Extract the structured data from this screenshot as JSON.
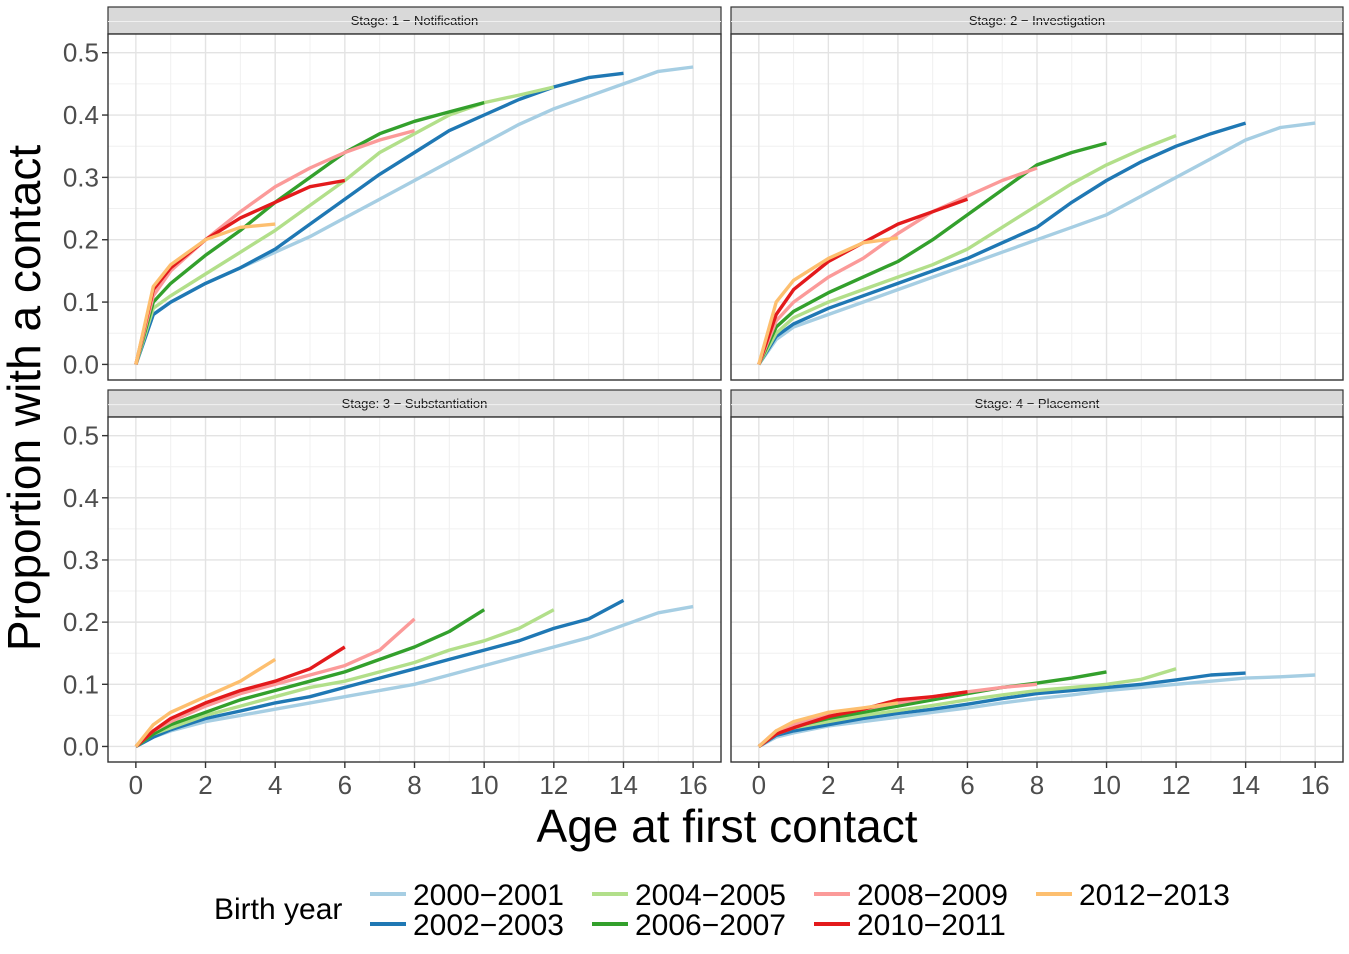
{
  "chart_data": {
    "type": "line",
    "facets": [
      "Stage: 1 − Notification",
      "Stage: 2 − Investigation",
      "Stage: 3 − Substantiation",
      "Stage: 4 − Placement"
    ],
    "xlabel": "Age at first contact",
    "ylabel": "Proportion with a contact",
    "xlim": [
      -0.8,
      16.8
    ],
    "ylim": [
      -0.025,
      0.53
    ],
    "x_ticks": [
      "0",
      "2",
      "4",
      "6",
      "8",
      "10",
      "12",
      "14",
      "16"
    ],
    "y_ticks": [
      "0.0",
      "0.1",
      "0.2",
      "0.3",
      "0.4",
      "0.5"
    ],
    "legend": {
      "title": "Birth year",
      "position": "bottom"
    },
    "grid": true,
    "series_meta": [
      {
        "name": "2000−2001",
        "color": "#a6cee3"
      },
      {
        "name": "2002−2003",
        "color": "#1f78b4"
      },
      {
        "name": "2004−2005",
        "color": "#b2df8a"
      },
      {
        "name": "2006−2007",
        "color": "#33a02c"
      },
      {
        "name": "2008−2009",
        "color": "#fb9a99"
      },
      {
        "name": "2010−2011",
        "color": "#e31a1c"
      },
      {
        "name": "2012−2013",
        "color": "#fdbf6f"
      }
    ],
    "panels": [
      {
        "title": "Stage: 1 − Notification",
        "series": [
          {
            "name": "2000−2001",
            "x": [
              0,
              0.5,
              1,
              2,
              3,
              4,
              5,
              6,
              7,
              8,
              9,
              10,
              11,
              12,
              13,
              14,
              15,
              16
            ],
            "y": [
              0.0,
              0.08,
              0.1,
              0.13,
              0.155,
              0.18,
              0.205,
              0.235,
              0.265,
              0.295,
              0.325,
              0.355,
              0.385,
              0.41,
              0.43,
              0.45,
              0.47,
              0.477
            ]
          },
          {
            "name": "2002−2003",
            "x": [
              0,
              0.5,
              1,
              2,
              3,
              4,
              5,
              6,
              7,
              8,
              9,
              10,
              11,
              12,
              13,
              14
            ],
            "y": [
              0.0,
              0.08,
              0.1,
              0.13,
              0.155,
              0.185,
              0.225,
              0.265,
              0.305,
              0.34,
              0.375,
              0.4,
              0.425,
              0.445,
              0.46,
              0.467
            ]
          },
          {
            "name": "2004−2005",
            "x": [
              0,
              0.5,
              1,
              2,
              3,
              4,
              5,
              6,
              7,
              8,
              9,
              10,
              11,
              12
            ],
            "y": [
              0.0,
              0.09,
              0.11,
              0.145,
              0.18,
              0.215,
              0.255,
              0.295,
              0.34,
              0.37,
              0.4,
              0.42,
              0.432,
              0.445
            ]
          },
          {
            "name": "2006−2007",
            "x": [
              0,
              0.5,
              1,
              2,
              3,
              4,
              5,
              6,
              7,
              8,
              9,
              10
            ],
            "y": [
              0.0,
              0.1,
              0.13,
              0.175,
              0.215,
              0.26,
              0.3,
              0.34,
              0.37,
              0.39,
              0.405,
              0.42
            ]
          },
          {
            "name": "2008−2009",
            "x": [
              0,
              0.5,
              1,
              2,
              3,
              4,
              5,
              6,
              7,
              8
            ],
            "y": [
              0.0,
              0.11,
              0.15,
              0.2,
              0.245,
              0.285,
              0.315,
              0.34,
              0.36,
              0.375
            ]
          },
          {
            "name": "2010−2011",
            "x": [
              0,
              0.5,
              1,
              2,
              3,
              4,
              5,
              6
            ],
            "y": [
              0.0,
              0.12,
              0.155,
              0.2,
              0.235,
              0.26,
              0.285,
              0.295
            ]
          },
          {
            "name": "2012−2013",
            "x": [
              0,
              0.5,
              1,
              2,
              3,
              4
            ],
            "y": [
              0.0,
              0.125,
              0.16,
              0.2,
              0.22,
              0.225
            ]
          }
        ]
      },
      {
        "title": "Stage: 2 − Investigation",
        "series": [
          {
            "name": "2000−2001",
            "x": [
              0,
              0.5,
              1,
              2,
              3,
              4,
              5,
              6,
              7,
              8,
              9,
              10,
              11,
              12,
              13,
              14,
              15,
              16
            ],
            "y": [
              0.0,
              0.04,
              0.06,
              0.08,
              0.1,
              0.12,
              0.14,
              0.16,
              0.18,
              0.2,
              0.22,
              0.24,
              0.27,
              0.3,
              0.33,
              0.36,
              0.38,
              0.387
            ]
          },
          {
            "name": "2002−2003",
            "x": [
              0,
              0.5,
              1,
              2,
              3,
              4,
              5,
              6,
              7,
              8,
              9,
              10,
              11,
              12,
              13,
              14
            ],
            "y": [
              0.0,
              0.045,
              0.065,
              0.09,
              0.11,
              0.13,
              0.15,
              0.17,
              0.195,
              0.22,
              0.26,
              0.295,
              0.325,
              0.35,
              0.37,
              0.387
            ]
          },
          {
            "name": "2004−2005",
            "x": [
              0,
              0.5,
              1,
              2,
              3,
              4,
              5,
              6,
              7,
              8,
              9,
              10,
              11,
              12
            ],
            "y": [
              0.0,
              0.05,
              0.075,
              0.1,
              0.12,
              0.14,
              0.16,
              0.185,
              0.22,
              0.255,
              0.29,
              0.32,
              0.345,
              0.367
            ]
          },
          {
            "name": "2006−2007",
            "x": [
              0,
              0.5,
              1,
              2,
              3,
              4,
              5,
              6,
              7,
              8,
              9,
              10
            ],
            "y": [
              0.0,
              0.06,
              0.085,
              0.115,
              0.14,
              0.165,
              0.2,
              0.24,
              0.28,
              0.32,
              0.34,
              0.355
            ]
          },
          {
            "name": "2008−2009",
            "x": [
              0,
              0.5,
              1,
              2,
              3,
              4,
              5,
              6,
              7,
              8
            ],
            "y": [
              0.0,
              0.07,
              0.1,
              0.14,
              0.17,
              0.21,
              0.245,
              0.27,
              0.295,
              0.315
            ]
          },
          {
            "name": "2010−2011",
            "x": [
              0,
              0.5,
              1,
              2,
              3,
              4,
              5,
              6
            ],
            "y": [
              0.0,
              0.08,
              0.12,
              0.165,
              0.195,
              0.225,
              0.245,
              0.265
            ]
          },
          {
            "name": "2012−2013",
            "x": [
              0,
              0.5,
              1,
              2,
              3,
              4
            ],
            "y": [
              0.0,
              0.1,
              0.135,
              0.17,
              0.195,
              0.203
            ]
          }
        ]
      },
      {
        "title": "Stage: 3 − Substantiation",
        "series": [
          {
            "name": "2000−2001",
            "x": [
              0,
              0.5,
              1,
              2,
              3,
              4,
              5,
              6,
              7,
              8,
              9,
              10,
              11,
              12,
              13,
              14,
              15,
              16
            ],
            "y": [
              0.0,
              0.015,
              0.025,
              0.04,
              0.05,
              0.06,
              0.07,
              0.08,
              0.09,
              0.1,
              0.115,
              0.13,
              0.145,
              0.16,
              0.175,
              0.195,
              0.215,
              0.225
            ]
          },
          {
            "name": "2002−2003",
            "x": [
              0,
              0.5,
              1,
              2,
              3,
              4,
              5,
              6,
              7,
              8,
              9,
              10,
              11,
              12,
              13,
              14
            ],
            "y": [
              0.0,
              0.015,
              0.027,
              0.045,
              0.057,
              0.07,
              0.08,
              0.095,
              0.11,
              0.125,
              0.14,
              0.155,
              0.17,
              0.19,
              0.205,
              0.235
            ]
          },
          {
            "name": "2004−2005",
            "x": [
              0,
              0.5,
              1,
              2,
              3,
              4,
              5,
              6,
              7,
              8,
              9,
              10,
              11,
              12
            ],
            "y": [
              0.0,
              0.02,
              0.03,
              0.05,
              0.065,
              0.08,
              0.095,
              0.105,
              0.12,
              0.135,
              0.155,
              0.17,
              0.19,
              0.22
            ]
          },
          {
            "name": "2006−2007",
            "x": [
              0,
              0.5,
              1,
              2,
              3,
              4,
              5,
              6,
              7,
              8,
              9,
              10
            ],
            "y": [
              0.0,
              0.02,
              0.035,
              0.055,
              0.075,
              0.09,
              0.105,
              0.12,
              0.14,
              0.16,
              0.185,
              0.22
            ]
          },
          {
            "name": "2008−2009",
            "x": [
              0,
              0.5,
              1,
              2,
              3,
              4,
              5,
              6,
              7,
              8
            ],
            "y": [
              0.0,
              0.025,
              0.04,
              0.065,
              0.085,
              0.1,
              0.115,
              0.13,
              0.155,
              0.205
            ]
          },
          {
            "name": "2010−2011",
            "x": [
              0,
              0.5,
              1,
              2,
              3,
              4,
              5,
              6
            ],
            "y": [
              0.0,
              0.025,
              0.045,
              0.07,
              0.09,
              0.105,
              0.125,
              0.16
            ]
          },
          {
            "name": "2012−2013",
            "x": [
              0,
              0.5,
              1,
              2,
              3,
              4
            ],
            "y": [
              0.0,
              0.035,
              0.055,
              0.08,
              0.105,
              0.14
            ]
          }
        ]
      },
      {
        "title": "Stage: 4 − Placement",
        "series": [
          {
            "name": "2000−2001",
            "x": [
              0,
              0.5,
              1,
              2,
              3,
              4,
              5,
              6,
              7,
              8,
              9,
              10,
              11,
              12,
              13,
              14,
              15,
              16
            ],
            "y": [
              0.0,
              0.015,
              0.022,
              0.033,
              0.04,
              0.047,
              0.055,
              0.062,
              0.07,
              0.077,
              0.083,
              0.09,
              0.095,
              0.1,
              0.105,
              0.11,
              0.112,
              0.115
            ]
          },
          {
            "name": "2002−2003",
            "x": [
              0,
              0.5,
              1,
              2,
              3,
              4,
              5,
              6,
              7,
              8,
              9,
              10,
              11,
              12,
              13,
              14
            ],
            "y": [
              0.0,
              0.018,
              0.025,
              0.035,
              0.045,
              0.053,
              0.06,
              0.068,
              0.077,
              0.085,
              0.09,
              0.095,
              0.1,
              0.107,
              0.115,
              0.118
            ]
          },
          {
            "name": "2004−2005",
            "x": [
              0,
              0.5,
              1,
              2,
              3,
              4,
              5,
              6,
              7,
              8,
              9,
              10,
              11,
              12
            ],
            "y": [
              0.0,
              0.02,
              0.03,
              0.04,
              0.05,
              0.058,
              0.066,
              0.075,
              0.083,
              0.09,
              0.095,
              0.1,
              0.108,
              0.125
            ]
          },
          {
            "name": "2006−2007",
            "x": [
              0,
              0.5,
              1,
              2,
              3,
              4,
              5,
              6,
              7,
              8,
              9,
              10
            ],
            "y": [
              0.0,
              0.022,
              0.032,
              0.045,
              0.055,
              0.065,
              0.075,
              0.085,
              0.095,
              0.102,
              0.11,
              0.12
            ]
          },
          {
            "name": "2008−2009",
            "x": [
              0,
              0.5,
              1,
              2,
              3,
              4,
              5,
              6,
              7,
              8
            ],
            "y": [
              0.0,
              0.025,
              0.035,
              0.05,
              0.06,
              0.07,
              0.08,
              0.088,
              0.095,
              0.1
            ]
          },
          {
            "name": "2010−2011",
            "x": [
              0,
              0.5,
              1,
              2,
              3,
              4,
              5,
              6
            ],
            "y": [
              0.0,
              0.02,
              0.03,
              0.048,
              0.06,
              0.075,
              0.08,
              0.088
            ]
          },
          {
            "name": "2012−2013",
            "x": [
              0,
              0.5,
              1,
              2,
              3,
              4
            ],
            "y": [
              0.0,
              0.025,
              0.04,
              0.055,
              0.062,
              0.07
            ]
          }
        ]
      }
    ]
  }
}
